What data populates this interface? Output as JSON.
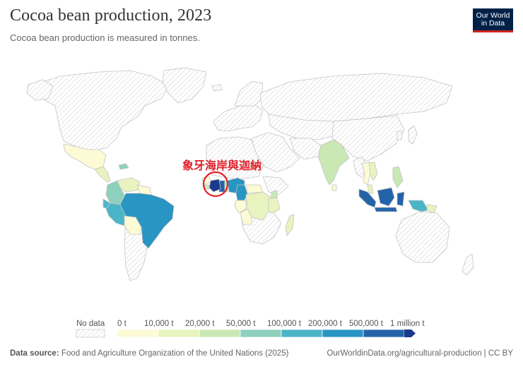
{
  "header": {
    "title": "Cocoa bean production, 2023",
    "subtitle": "Cocoa bean production is measured in tonnes.",
    "logo_line1": "Our World",
    "logo_line2": "in Data"
  },
  "annotation": {
    "text": "象牙海岸與迦納",
    "color": "#e0202a"
  },
  "legend": {
    "no_data_label": "No data",
    "bins": [
      {
        "label": "0 t",
        "color": "#fdfbd6"
      },
      {
        "label": "10,000 t",
        "color": "#e8f3bf"
      },
      {
        "label": "20,000 t",
        "color": "#c9e8b4"
      },
      {
        "label": "50,000 t",
        "color": "#8dd0bd"
      },
      {
        "label": "100,000 t",
        "color": "#4bb5c8"
      },
      {
        "label": "200,000 t",
        "color": "#2895c3"
      },
      {
        "label": "500,000 t",
        "color": "#2364a8"
      },
      {
        "label": "1 million t",
        "color": "#1c3a8c"
      }
    ]
  },
  "countries": [
    {
      "name": "Mexico",
      "bin": 2
    },
    {
      "name": "Guatemala",
      "bin": 1
    },
    {
      "name": "Honduras",
      "bin": 0
    },
    {
      "name": "Nicaragua",
      "bin": 1
    },
    {
      "name": "Dominican Republic",
      "bin": 3
    },
    {
      "name": "Haiti",
      "bin": 1
    },
    {
      "name": "Colombia",
      "bin": 3
    },
    {
      "name": "Venezuela",
      "bin": 1
    },
    {
      "name": "Guyana",
      "bin": 0
    },
    {
      "name": "Suriname",
      "bin": 0
    },
    {
      "name": "Ecuador",
      "bin": 4
    },
    {
      "name": "Peru",
      "bin": 4
    },
    {
      "name": "Brazil",
      "bin": 5
    },
    {
      "name": "Bolivia",
      "bin": 0
    },
    {
      "name": "Sierra Leone",
      "bin": 2
    },
    {
      "name": "Liberia",
      "bin": 1
    },
    {
      "name": "Guinea",
      "bin": 0
    },
    {
      "name": "Cote d'Ivoire",
      "bin": 7
    },
    {
      "name": "Ghana",
      "bin": 6
    },
    {
      "name": "Togo",
      "bin": 2
    },
    {
      "name": "Nigeria",
      "bin": 5
    },
    {
      "name": "Cameroon",
      "bin": 5
    },
    {
      "name": "Central African Republic",
      "bin": 0
    },
    {
      "name": "Gabon",
      "bin": 0
    },
    {
      "name": "Congo",
      "bin": 0
    },
    {
      "name": "DR Congo",
      "bin": 1
    },
    {
      "name": "Uganda",
      "bin": 2
    },
    {
      "name": "Tanzania",
      "bin": 1
    },
    {
      "name": "Angola",
      "bin": 0
    },
    {
      "name": "Madagascar",
      "bin": 1
    },
    {
      "name": "India",
      "bin": 2
    },
    {
      "name": "Sri Lanka",
      "bin": 0
    },
    {
      "name": "Thailand",
      "bin": 0
    },
    {
      "name": "Vietnam",
      "bin": 1
    },
    {
      "name": "Philippines",
      "bin": 2
    },
    {
      "name": "Malaysia",
      "bin": 1
    },
    {
      "name": "Indonesia",
      "bin": 6
    },
    {
      "name": "Papua New Guinea",
      "bin": 4
    },
    {
      "name": "Solomon Islands",
      "bin": 1
    }
  ],
  "footer": {
    "source_label": "Data source:",
    "source_text": "Food and Agriculture Organization of the United Nations (2025)",
    "url": "OurWorldinData.org/agricultural-production | CC BY"
  }
}
